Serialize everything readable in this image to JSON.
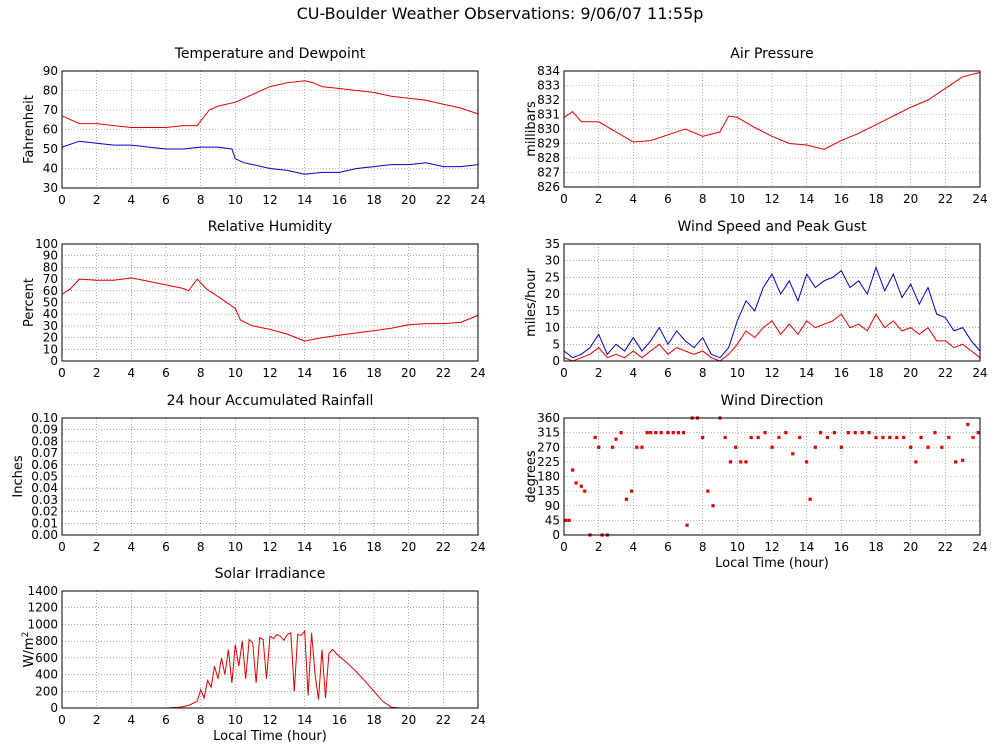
{
  "title": "CU-Boulder Weather Observations: 9/06/07 11:55p",
  "colors": {
    "red": "#e00000",
    "blue": "#0000c8",
    "text": "#000000"
  },
  "chart_data": [
    {
      "id": "temp",
      "type": "line",
      "title": "Temperature and Dewpoint",
      "ylabel": "Fahrenheit",
      "xlabel": "",
      "xlim": [
        0,
        24
      ],
      "ylim": [
        30,
        90
      ],
      "xticks": [
        "0",
        "2",
        "4",
        "6",
        "8",
        "10",
        "12",
        "14",
        "16",
        "18",
        "20",
        "22",
        "24"
      ],
      "yticks": [
        "30",
        "40",
        "50",
        "60",
        "70",
        "80",
        "90"
      ],
      "grid": true,
      "series": [
        {
          "color": "#e00000",
          "x": [
            0,
            1,
            2,
            3,
            4,
            5,
            6,
            7,
            7.8,
            8.5,
            9,
            10,
            11,
            12,
            13,
            14,
            14.5,
            15,
            16,
            17,
            18,
            19,
            20,
            21,
            22,
            23,
            24
          ],
          "y": [
            67,
            63,
            63,
            62,
            61,
            61,
            61,
            62,
            62,
            70,
            72,
            74,
            78,
            82,
            84,
            85,
            84,
            82,
            81,
            80,
            79,
            77,
            76,
            75,
            73,
            71,
            68
          ]
        },
        {
          "color": "#0000c8",
          "x": [
            0,
            1,
            2,
            3,
            4,
            5,
            6,
            7,
            8,
            9,
            9.8,
            10,
            10.5,
            11,
            12,
            13,
            14,
            15,
            16,
            17,
            18,
            19,
            20,
            21,
            22,
            23,
            24
          ],
          "y": [
            51,
            54,
            53,
            52,
            52,
            51,
            50,
            50,
            51,
            51,
            50,
            45,
            43,
            42,
            40,
            39,
            37,
            38,
            38,
            40,
            41,
            42,
            42,
            43,
            41,
            41,
            42
          ]
        }
      ]
    },
    {
      "id": "pressure",
      "type": "line",
      "title": "Air Pressure",
      "ylabel": "millibars",
      "xlabel": "",
      "xlim": [
        0,
        24
      ],
      "ylim": [
        826,
        834
      ],
      "xticks": [
        "0",
        "2",
        "4",
        "6",
        "8",
        "10",
        "12",
        "14",
        "16",
        "18",
        "20",
        "22",
        "24"
      ],
      "yticks": [
        "826",
        "827",
        "828",
        "829",
        "830",
        "831",
        "832",
        "833",
        "834"
      ],
      "grid": true,
      "series": [
        {
          "color": "#e00000",
          "x": [
            0,
            0.5,
            1,
            2,
            3,
            4,
            5,
            6,
            7,
            8,
            9,
            9.5,
            10,
            11,
            12,
            13,
            14,
            15,
            16,
            17,
            18,
            19,
            20,
            21,
            22,
            23,
            24
          ],
          "y": [
            830.8,
            831.2,
            830.5,
            830.5,
            829.8,
            829.1,
            829.2,
            829.6,
            830.0,
            829.5,
            829.8,
            830.9,
            830.8,
            830.1,
            829.5,
            829.0,
            828.9,
            828.6,
            829.2,
            829.7,
            830.3,
            830.9,
            831.5,
            832.0,
            832.8,
            833.6,
            833.9
          ]
        }
      ]
    },
    {
      "id": "humidity",
      "type": "line",
      "title": "Relative Humidity",
      "ylabel": "Percent",
      "xlabel": "",
      "xlim": [
        0,
        24
      ],
      "ylim": [
        0,
        100
      ],
      "xticks": [
        "0",
        "2",
        "4",
        "6",
        "8",
        "10",
        "12",
        "14",
        "16",
        "18",
        "20",
        "22",
        "24"
      ],
      "yticks": [
        "0",
        "10",
        "20",
        "30",
        "40",
        "50",
        "60",
        "70",
        "80",
        "90",
        "100"
      ],
      "grid": true,
      "series": [
        {
          "color": "#e00000",
          "x": [
            0,
            0.5,
            1,
            2,
            3,
            4,
            5,
            6,
            7,
            7.3,
            7.8,
            8.3,
            9,
            10,
            10.3,
            11,
            12,
            13,
            14,
            15,
            16,
            17,
            18,
            19,
            20,
            21,
            22,
            23,
            24
          ],
          "y": [
            57,
            62,
            70,
            69,
            69,
            71,
            68,
            65,
            62,
            60,
            70,
            62,
            55,
            45,
            35,
            30,
            27,
            23,
            17,
            20,
            22,
            24,
            26,
            28,
            31,
            32,
            32,
            33,
            39
          ]
        }
      ]
    },
    {
      "id": "wind",
      "type": "line",
      "title": "Wind Speed and Peak Gust",
      "ylabel": "miles/hour",
      "xlabel": "",
      "xlim": [
        0,
        24
      ],
      "ylim": [
        0,
        35
      ],
      "xticks": [
        "0",
        "2",
        "4",
        "6",
        "8",
        "10",
        "12",
        "14",
        "16",
        "18",
        "20",
        "22",
        "24"
      ],
      "yticks": [
        "0",
        "5",
        "10",
        "15",
        "20",
        "25",
        "30",
        "35"
      ],
      "grid": true,
      "series": [
        {
          "color": "#0000c8",
          "x": [
            0,
            0.5,
            1,
            1.5,
            2,
            2.5,
            3,
            3.5,
            4,
            4.5,
            5,
            5.5,
            6,
            6.5,
            7,
            7.5,
            8,
            8.5,
            9,
            9.5,
            10,
            10.5,
            11,
            11.5,
            12,
            12.5,
            13,
            13.5,
            14,
            14.5,
            15,
            15.5,
            16,
            16.5,
            17,
            17.5,
            18,
            18.5,
            19,
            19.5,
            20,
            20.5,
            21,
            21.5,
            22,
            22.5,
            23,
            23.5,
            24
          ],
          "y": [
            3,
            1,
            2,
            4,
            8,
            2,
            5,
            3,
            7,
            3,
            6,
            10,
            5,
            9,
            6,
            4,
            7,
            2,
            1,
            4,
            12,
            18,
            15,
            22,
            26,
            20,
            24,
            18,
            26,
            22,
            24,
            25,
            27,
            22,
            24,
            20,
            28,
            21,
            26,
            19,
            23,
            17,
            22,
            14,
            13,
            9,
            10,
            6,
            3
          ]
        },
        {
          "color": "#e00000",
          "x": [
            0,
            0.5,
            1,
            1.5,
            2,
            2.5,
            3,
            3.5,
            4,
            4.5,
            5,
            5.5,
            6,
            6.5,
            7,
            7.5,
            8,
            8.5,
            9,
            9.5,
            10,
            10.5,
            11,
            11.5,
            12,
            12.5,
            13,
            13.5,
            14,
            14.5,
            15,
            15.5,
            16,
            16.5,
            17,
            17.5,
            18,
            18.5,
            19,
            19.5,
            20,
            20.5,
            21,
            21.5,
            22,
            22.5,
            23,
            23.5,
            24
          ],
          "y": [
            1,
            0,
            1,
            2,
            4,
            1,
            2,
            1,
            3,
            1,
            3,
            5,
            2,
            4,
            3,
            2,
            3,
            1,
            0,
            2,
            5,
            9,
            7,
            10,
            12,
            8,
            11,
            8,
            12,
            10,
            11,
            12,
            14,
            10,
            11,
            9,
            14,
            10,
            12,
            9,
            10,
            8,
            10,
            6,
            6,
            4,
            5,
            3,
            1
          ]
        }
      ]
    },
    {
      "id": "rain",
      "type": "line",
      "title": "24 hour Accumulated Rainfall",
      "ylabel": "Inches",
      "xlabel": "",
      "xlim": [
        0,
        24
      ],
      "ylim": [
        0,
        0.1
      ],
      "xticks": [
        "0",
        "2",
        "4",
        "6",
        "8",
        "10",
        "12",
        "14",
        "16",
        "18",
        "20",
        "22",
        "24"
      ],
      "yticks": [
        "0.00",
        "0.01",
        "0.02",
        "0.03",
        "0.04",
        "0.05",
        "0.06",
        "0.07",
        "0.08",
        "0.09",
        "0.10"
      ],
      "grid": true,
      "series": [
        {
          "color": "#e00000",
          "x": [
            0,
            24
          ],
          "y": [
            0,
            0
          ]
        }
      ]
    },
    {
      "id": "direction",
      "type": "scatter",
      "title": "Wind Direction",
      "ylabel": "degrees",
      "xlabel": "Local Time (hour)",
      "xlim": [
        0,
        24
      ],
      "ylim": [
        0,
        360
      ],
      "xticks": [
        "0",
        "2",
        "4",
        "6",
        "8",
        "10",
        "12",
        "14",
        "16",
        "18",
        "20",
        "22",
        "24"
      ],
      "yticks": [
        "0",
        "45",
        "90",
        "135",
        "180",
        "225",
        "270",
        "315",
        "360"
      ],
      "grid": true,
      "series": [
        {
          "color": "#e00000",
          "x": [
            0.1,
            0.3,
            0.5,
            0.7,
            1.0,
            1.2,
            1.5,
            1.8,
            2.0,
            2.2,
            2.5,
            2.8,
            3.0,
            3.3,
            3.6,
            3.9,
            4.2,
            4.5,
            4.8,
            5.0,
            5.3,
            5.6,
            6.0,
            6.3,
            6.6,
            6.9,
            7.1,
            7.4,
            7.7,
            8.0,
            8.3,
            8.6,
            9.0,
            9.3,
            9.6,
            9.9,
            10.2,
            10.5,
            10.8,
            11.2,
            11.6,
            12.0,
            12.4,
            12.8,
            13.2,
            13.6,
            14.0,
            14.2,
            14.5,
            14.8,
            15.2,
            15.6,
            16.0,
            16.4,
            16.8,
            17.2,
            17.6,
            18.0,
            18.4,
            18.8,
            19.2,
            19.6,
            20.0,
            20.3,
            20.6,
            21.0,
            21.4,
            21.8,
            22.2,
            22.6,
            23.0,
            23.3,
            23.6,
            23.9
          ],
          "y": [
            45,
            45,
            200,
            160,
            150,
            135,
            0,
            300,
            270,
            0,
            0,
            270,
            295,
            315,
            110,
            135,
            270,
            270,
            315,
            315,
            315,
            315,
            315,
            315,
            315,
            315,
            30,
            360,
            360,
            300,
            135,
            90,
            360,
            300,
            225,
            270,
            225,
            225,
            300,
            300,
            315,
            270,
            300,
            315,
            250,
            300,
            225,
            110,
            270,
            315,
            300,
            315,
            270,
            315,
            315,
            315,
            315,
            300,
            300,
            300,
            300,
            300,
            270,
            225,
            300,
            270,
            315,
            270,
            300,
            225,
            230,
            340,
            300,
            315
          ]
        }
      ]
    },
    {
      "id": "solar",
      "type": "line",
      "title": "Solar Irradiance",
      "ylabel": "W/m2",
      "xlabel": "Local Time (hour)",
      "xlim": [
        0,
        24
      ],
      "ylim": [
        0,
        1400
      ],
      "xticks": [
        "0",
        "2",
        "4",
        "6",
        "8",
        "10",
        "12",
        "14",
        "16",
        "18",
        "20",
        "22",
        "24"
      ],
      "yticks": [
        "0",
        "200",
        "400",
        "600",
        "800",
        "1000",
        "1200",
        "1400"
      ],
      "grid": true,
      "series": [
        {
          "color": "#e00000",
          "x": [
            0,
            6,
            6.8,
            7.3,
            7.8,
            8.0,
            8.2,
            8.4,
            8.6,
            8.8,
            9.0,
            9.2,
            9.4,
            9.6,
            9.8,
            10.0,
            10.2,
            10.4,
            10.6,
            10.8,
            11.0,
            11.2,
            11.4,
            11.6,
            11.8,
            12.0,
            12.2,
            12.4,
            12.6,
            12.8,
            13.0,
            13.2,
            13.4,
            13.6,
            13.8,
            14.0,
            14.2,
            14.4,
            14.6,
            14.8,
            15.0,
            15.2,
            15.4,
            15.6,
            16.0,
            16.5,
            17.0,
            17.5,
            18.0,
            18.5,
            19.0,
            19.5,
            24
          ],
          "y": [
            0,
            0,
            10,
            30,
            80,
            220,
            120,
            330,
            250,
            500,
            350,
            600,
            400,
            700,
            300,
            760,
            500,
            800,
            350,
            820,
            780,
            300,
            840,
            820,
            350,
            860,
            830,
            880,
            860,
            810,
            880,
            900,
            200,
            880,
            870,
            920,
            150,
            900,
            400,
            100,
            700,
            120,
            650,
            700,
            620,
            530,
            430,
            320,
            200,
            80,
            10,
            0,
            0
          ]
        }
      ]
    }
  ]
}
